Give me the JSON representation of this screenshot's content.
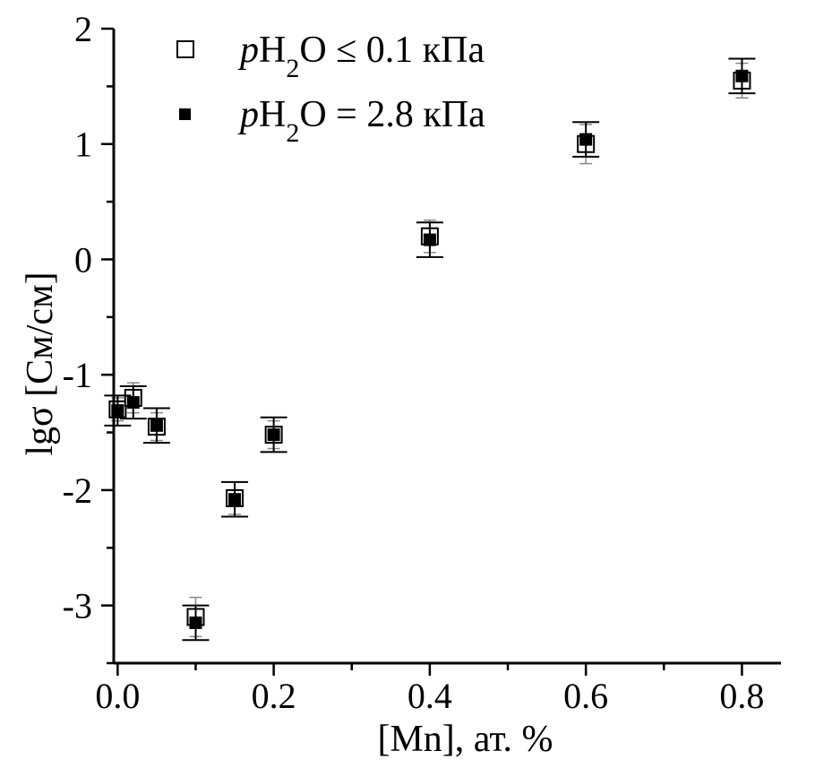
{
  "chart_data": {
    "type": "scatter",
    "xlabel": "[Mn], ат. %",
    "ylabel": "lgσ [См/см]",
    "xlim": [
      -0.005,
      0.85
    ],
    "ylim": [
      -3.5,
      2.0
    ],
    "x_ticks": [
      0.0,
      0.2,
      0.4,
      0.6,
      0.8
    ],
    "x_tick_labels": [
      "0.0",
      "0.2",
      "0.4",
      "0.6",
      "0.8"
    ],
    "y_ticks": [
      2,
      1,
      0,
      -1,
      -2,
      -3
    ],
    "y_tick_labels": [
      "2",
      "1",
      "0",
      "-1",
      "-2",
      "-3"
    ],
    "legend_position": "top-left",
    "series": [
      {
        "key": "dry",
        "legend": {
          "prefix": "p",
          "main": "H",
          "sub": "2",
          "suffix": "O ≤ 0.1 кПа"
        },
        "marker": "open-square",
        "color": "#000000",
        "points": [
          {
            "x": 0.0,
            "y": -1.3,
            "err": 0.1
          },
          {
            "x": 0.02,
            "y": -1.2,
            "err": 0.13
          },
          {
            "x": 0.05,
            "y": -1.45,
            "err": 0.12
          },
          {
            "x": 0.1,
            "y": -3.1,
            "err": 0.17
          },
          {
            "x": 0.15,
            "y": -2.07,
            "err": 0.14
          },
          {
            "x": 0.2,
            "y": -1.52,
            "err": 0.12
          },
          {
            "x": 0.4,
            "y": 0.2,
            "err": 0.14
          },
          {
            "x": 0.6,
            "y": 1.0,
            "err": 0.17
          },
          {
            "x": 0.8,
            "y": 1.55,
            "err": 0.15
          }
        ]
      },
      {
        "key": "wet",
        "legend": {
          "prefix": "p",
          "main": "H",
          "sub": "2",
          "suffix": "O = 2.8 кПа"
        },
        "marker": "filled-square",
        "color": "#000000",
        "points": [
          {
            "x": 0.0,
            "y": -1.31,
            "err": 0.13
          },
          {
            "x": 0.02,
            "y": -1.24,
            "err": 0.14
          },
          {
            "x": 0.05,
            "y": -1.44,
            "err": 0.15
          },
          {
            "x": 0.1,
            "y": -3.15,
            "err": 0.15
          },
          {
            "x": 0.15,
            "y": -2.08,
            "err": 0.15
          },
          {
            "x": 0.2,
            "y": -1.52,
            "err": 0.15
          },
          {
            "x": 0.4,
            "y": 0.17,
            "err": 0.15
          },
          {
            "x": 0.6,
            "y": 1.04,
            "err": 0.15
          },
          {
            "x": 0.8,
            "y": 1.59,
            "err": 0.15
          }
        ]
      }
    ]
  }
}
